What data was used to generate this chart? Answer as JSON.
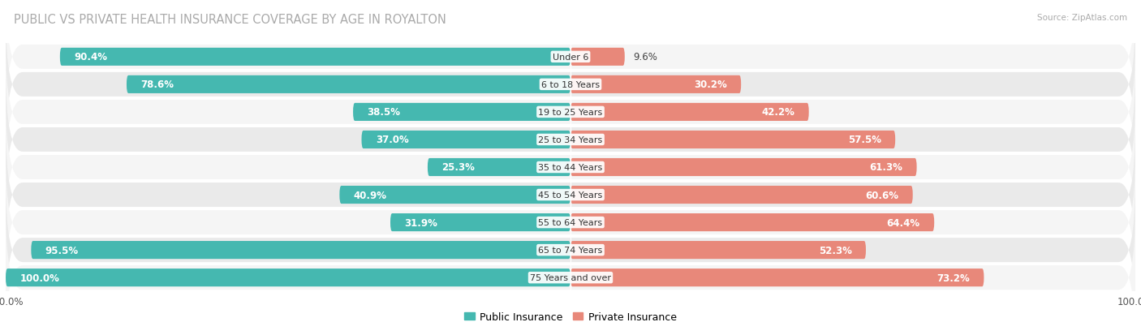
{
  "title": "PUBLIC VS PRIVATE HEALTH INSURANCE COVERAGE BY AGE IN ROYALTON",
  "source": "Source: ZipAtlas.com",
  "categories": [
    "Under 6",
    "6 to 18 Years",
    "19 to 25 Years",
    "25 to 34 Years",
    "35 to 44 Years",
    "45 to 54 Years",
    "55 to 64 Years",
    "65 to 74 Years",
    "75 Years and over"
  ],
  "public_values": [
    90.4,
    78.6,
    38.5,
    37.0,
    25.3,
    40.9,
    31.9,
    95.5,
    100.0
  ],
  "private_values": [
    9.6,
    30.2,
    42.2,
    57.5,
    61.3,
    60.6,
    64.4,
    52.3,
    73.2
  ],
  "public_color": "#45b8b0",
  "private_color": "#e8887a",
  "public_label": "Public Insurance",
  "private_label": "Private Insurance",
  "axis_max": 100.0,
  "bg_color": "#ffffff",
  "row_bg_odd": "#f5f5f5",
  "row_bg_even": "#eaeaea",
  "title_fontsize": 10.5,
  "bar_fontsize": 8.5,
  "category_fontsize": 8.0,
  "legend_fontsize": 9,
  "source_fontsize": 7.5
}
